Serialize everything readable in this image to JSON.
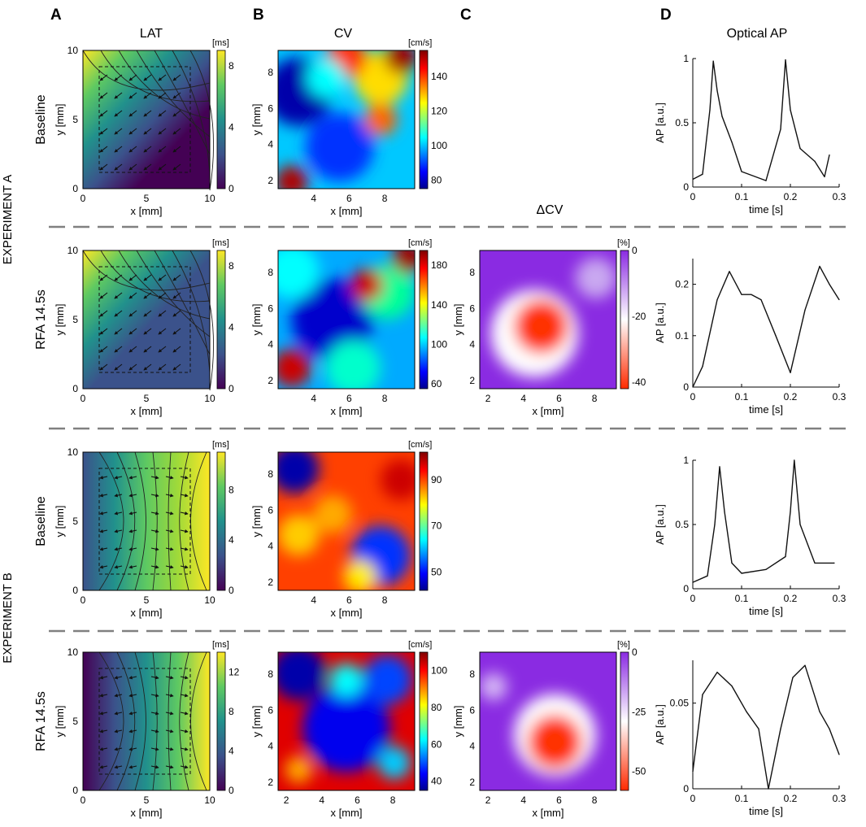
{
  "panels": {
    "a": "A",
    "b": "B",
    "c": "C",
    "d": "D"
  },
  "headers": {
    "lat": "LAT",
    "cv": "CV",
    "dcv": "ΔCV",
    "ap": "Optical AP"
  },
  "experiments": [
    "EXPERIMENT A",
    "EXPERIMENT B"
  ],
  "labels": {
    "x_mm": "x [mm]",
    "y_mm": "y [mm]",
    "time": "time [s]",
    "ap": "AP [a.u.]",
    "ms": "[ms]",
    "cms": "[cm/s]",
    "pct": "[%]"
  },
  "colors": {
    "viridis": [
      "#440154",
      "#3b528b",
      "#21918c",
      "#5ec962",
      "#fde725"
    ],
    "jet": [
      "#00008f",
      "#0000ff",
      "#00ffff",
      "#ffff00",
      "#ff0000",
      "#800000"
    ],
    "dcv": [
      "#ff2a00",
      "#ffffff",
      "#8a2be2"
    ]
  },
  "rows": [
    {
      "condition": "Baseline",
      "lat": {
        "cbar_max": 9,
        "cbar_ticks": [
          "0",
          "4",
          "8"
        ],
        "xticks": [
          "0",
          "5",
          "10"
        ],
        "yticks": [
          "0",
          "5",
          "10"
        ]
      },
      "cv": {
        "range": [
          75,
          155
        ],
        "cbar_ticks": [
          "80",
          "100",
          "120",
          "140"
        ],
        "xticks": [
          "4",
          "6",
          "8"
        ],
        "yticks": [
          "2",
          "4",
          "6",
          "8"
        ]
      },
      "dcv": null,
      "ap": {
        "xlim": [
          0,
          0.3
        ],
        "ylim": [
          0,
          1
        ],
        "xticks": [
          "0",
          "0.1",
          "0.2",
          "0.3"
        ],
        "yticks": [
          "0",
          "0.5",
          "1"
        ],
        "t": [
          0,
          0.02,
          0.035,
          0.042,
          0.05,
          0.06,
          0.08,
          0.1,
          0.15,
          0.18,
          0.19,
          0.2,
          0.22,
          0.25,
          0.27,
          0.28
        ],
        "v": [
          0.06,
          0.1,
          0.6,
          0.98,
          0.75,
          0.55,
          0.35,
          0.12,
          0.05,
          0.45,
          0.99,
          0.6,
          0.3,
          0.2,
          0.08,
          0.25
        ]
      }
    },
    {
      "condition": "RFA 14.5s",
      "lat": {
        "cbar_max": 9,
        "cbar_ticks": [
          "0",
          "4",
          "8"
        ],
        "xticks": [
          "0",
          "5",
          "10"
        ],
        "yticks": [
          "0",
          "5",
          "10"
        ]
      },
      "cv": {
        "range": [
          55,
          195
        ],
        "cbar_ticks": [
          "60",
          "100",
          "140",
          "180"
        ],
        "xticks": [
          "4",
          "6",
          "8"
        ],
        "yticks": [
          "2",
          "4",
          "6",
          "8"
        ]
      },
      "dcv": {
        "range": [
          -42,
          0
        ],
        "cbar_ticks": [
          "0",
          "-20",
          "-40"
        ],
        "xticks": [
          "2",
          "4",
          "6",
          "8"
        ],
        "yticks": [
          "2",
          "4",
          "6",
          "8"
        ]
      },
      "ap": {
        "xlim": [
          0,
          0.3
        ],
        "ylim": [
          0,
          0.25
        ],
        "xticks": [
          "0",
          "0.1",
          "0.2",
          "0.3"
        ],
        "yticks": [
          "0",
          "0.1",
          "0.2"
        ],
        "t": [
          0,
          0.02,
          0.05,
          0.075,
          0.1,
          0.12,
          0.14,
          0.17,
          0.2,
          0.23,
          0.26,
          0.28,
          0.3
        ],
        "v": [
          0,
          0.04,
          0.17,
          0.225,
          0.18,
          0.18,
          0.17,
          0.1,
          0.028,
          0.15,
          0.235,
          0.2,
          0.17
        ]
      }
    },
    {
      "condition": "Baseline",
      "lat": {
        "cbar_max": 11,
        "cbar_ticks": [
          "0",
          "4",
          "8"
        ],
        "xticks": [
          "0",
          "5",
          "10"
        ],
        "yticks": [
          "0",
          "5",
          "10"
        ]
      },
      "cv": {
        "range": [
          42,
          102
        ],
        "cbar_ticks": [
          "50",
          "70",
          "90"
        ],
        "xticks": [
          "4",
          "6",
          "8"
        ],
        "yticks": [
          "2",
          "4",
          "6",
          "8"
        ]
      },
      "dcv": null,
      "ap": {
        "xlim": [
          0,
          0.3
        ],
        "ylim": [
          0,
          1
        ],
        "xticks": [
          "0",
          "0.1",
          "0.2",
          "0.3"
        ],
        "yticks": [
          "0",
          "0.5",
          "1"
        ],
        "t": [
          0,
          0.03,
          0.045,
          0.055,
          0.065,
          0.08,
          0.1,
          0.15,
          0.19,
          0.2,
          0.208,
          0.22,
          0.25,
          0.29
        ],
        "v": [
          0.05,
          0.1,
          0.5,
          0.95,
          0.6,
          0.2,
          0.12,
          0.15,
          0.25,
          0.6,
          1.0,
          0.5,
          0.2,
          0.2
        ]
      }
    },
    {
      "condition": "RFA 14.5s",
      "lat": {
        "cbar_max": 14,
        "cbar_ticks": [
          "0",
          "4",
          "8",
          "12"
        ],
        "xticks": [
          "0",
          "5",
          "10"
        ],
        "yticks": [
          "0",
          "5",
          "10"
        ]
      },
      "cv": {
        "range": [
          35,
          110
        ],
        "cbar_ticks": [
          "40",
          "60",
          "80",
          "100"
        ],
        "xticks": [
          "2",
          "4",
          "6",
          "8"
        ],
        "yticks": [
          "2",
          "4",
          "6",
          "8"
        ]
      },
      "dcv": {
        "range": [
          -58,
          0
        ],
        "cbar_ticks": [
          "0",
          "-25",
          "-50"
        ],
        "xticks": [
          "2",
          "4",
          "6",
          "8"
        ],
        "yticks": [
          "2",
          "4",
          "6",
          "8"
        ]
      },
      "ap": {
        "xlim": [
          0,
          0.3
        ],
        "ylim": [
          0,
          0.075
        ],
        "xticks": [
          "0",
          "0.1",
          "0.2",
          "0.3"
        ],
        "yticks": [
          "0",
          "0.05"
        ],
        "t": [
          0,
          0.02,
          0.05,
          0.08,
          0.11,
          0.135,
          0.155,
          0.18,
          0.205,
          0.23,
          0.26,
          0.28,
          0.3
        ],
        "v": [
          0.01,
          0.055,
          0.068,
          0.06,
          0.045,
          0.035,
          0.0,
          0.035,
          0.065,
          0.072,
          0.045,
          0.035,
          0.02
        ]
      }
    }
  ]
}
